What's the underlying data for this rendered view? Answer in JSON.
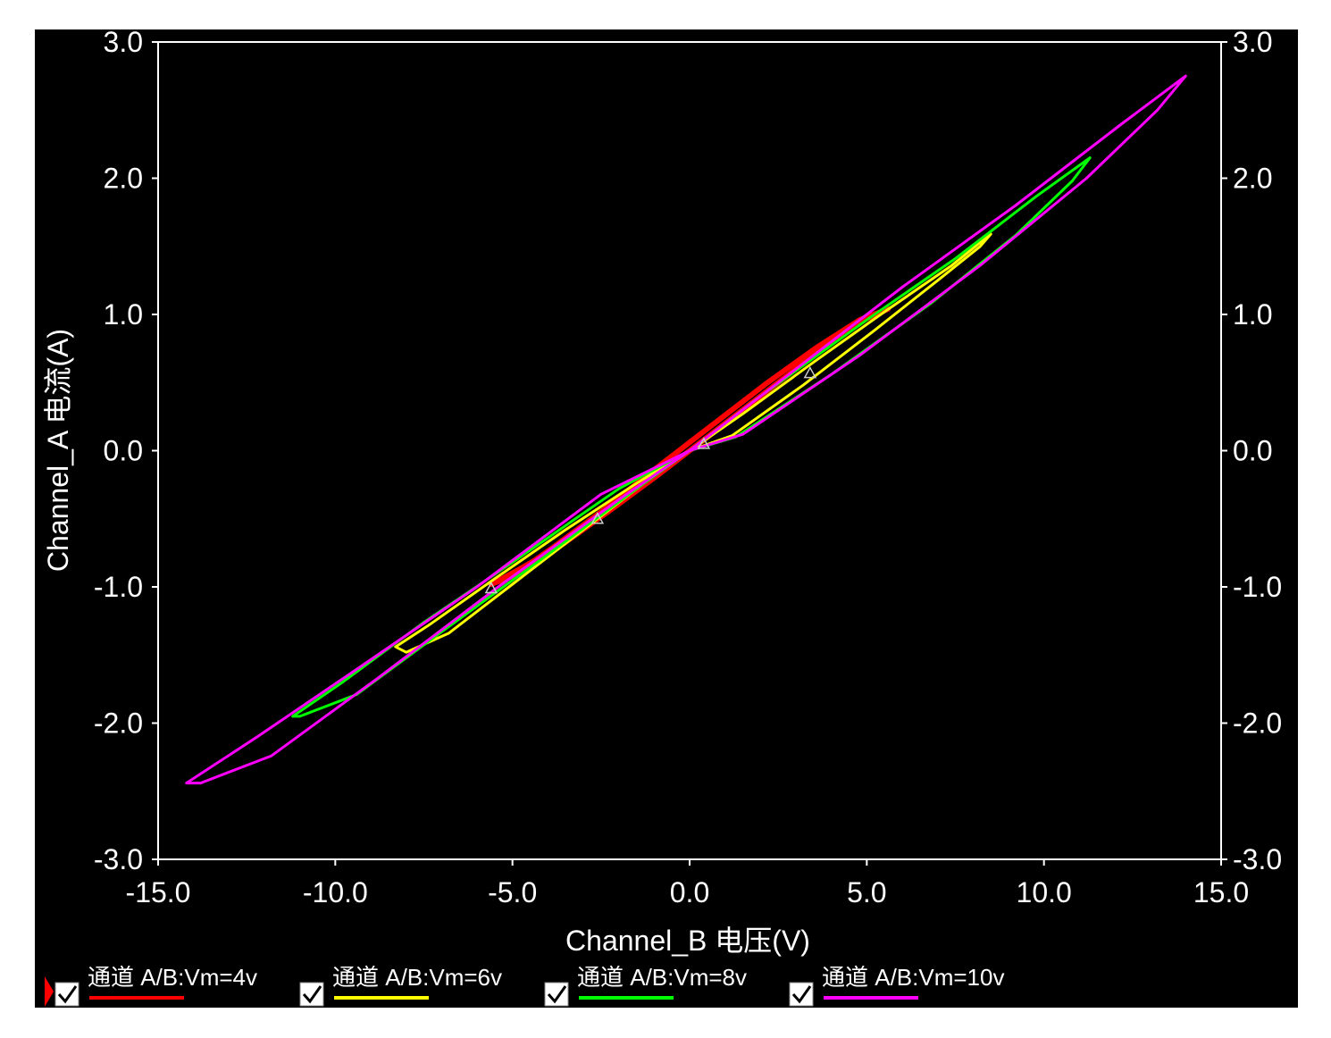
{
  "chart_data": {
    "type": "line",
    "title": "",
    "xlabel": "Channel_B 电压(V)",
    "ylabel": "Channel_A 电流(A)",
    "xlim": [
      -15,
      15
    ],
    "ylim": [
      -3,
      3
    ],
    "x_ticks": [
      "-15.0",
      "-10.0",
      "-5.0",
      "0.0",
      "5.0",
      "10.0",
      "15.0"
    ],
    "y_ticks": [
      "3.0",
      "2.0",
      "1.0",
      "0.0",
      "-1.0",
      "-2.0",
      "-3.0"
    ],
    "grid": false,
    "legend_position": "bottom",
    "background": "#000000",
    "series": [
      {
        "name": "通道 A/B:Vm=4v",
        "color": "#ff0000",
        "checked": true,
        "x": [
          5.6,
          5.5,
          4.8,
          3.6,
          2.2,
          0.9,
          0.0,
          -1.0,
          -2.4,
          -3.8,
          -5.0,
          -5.6,
          -5.5,
          -4.8,
          -3.6,
          -2.2,
          -0.9,
          0.0,
          1.0,
          2.4,
          3.8,
          5.0,
          5.6
        ],
        "y": [
          1.04,
          1.03,
          0.96,
          0.76,
          0.5,
          0.24,
          0.06,
          -0.14,
          -0.43,
          -0.7,
          -0.92,
          -0.98,
          -0.97,
          -0.87,
          -0.69,
          -0.43,
          -0.18,
          0.0,
          0.2,
          0.48,
          0.76,
          0.97,
          1.04
        ]
      },
      {
        "name": "通道 A/B:Vm=6v",
        "color": "#ffff00",
        "checked": true,
        "x": [
          8.5,
          8.2,
          7.0,
          5.2,
          3.2,
          1.2,
          0.0,
          -1.5,
          -3.5,
          -5.5,
          -7.3,
          -8.3,
          -8.0,
          -6.8,
          -5.0,
          -3.0,
          -1.0,
          0.0,
          1.5,
          3.5,
          5.5,
          7.4,
          8.5
        ],
        "y": [
          1.59,
          1.5,
          1.25,
          0.88,
          0.48,
          0.11,
          0.0,
          -0.24,
          -0.58,
          -0.94,
          -1.27,
          -1.44,
          -1.48,
          -1.34,
          -0.98,
          -0.58,
          -0.18,
          0.0,
          0.27,
          0.65,
          1.02,
          1.36,
          1.59
        ]
      },
      {
        "name": "通道 A/B:Vm=8v",
        "color": "#00ff00",
        "checked": true,
        "x": [
          11.3,
          10.8,
          9.2,
          6.8,
          4.0,
          1.3,
          0.0,
          -2.0,
          -5.0,
          -7.5,
          -9.8,
          -11.2,
          -11.0,
          -9.4,
          -7.0,
          -4.2,
          -1.5,
          0.0,
          2.0,
          5.0,
          7.5,
          9.8,
          11.3
        ],
        "y": [
          2.15,
          1.98,
          1.58,
          1.08,
          0.56,
          0.1,
          0.0,
          -0.28,
          -0.82,
          -1.26,
          -1.7,
          -1.95,
          -1.95,
          -1.79,
          -1.33,
          -0.8,
          -0.28,
          0.0,
          0.4,
          0.96,
          1.41,
          1.87,
          2.15
        ]
      },
      {
        "name": "通道 A/B:Vm=10v",
        "color": "#ff00ff",
        "checked": true,
        "x": [
          14.0,
          13.2,
          11.2,
          8.2,
          4.8,
          1.5,
          0.0,
          -2.5,
          -6.0,
          -9.2,
          -12.2,
          -14.2,
          -13.8,
          -11.8,
          -8.8,
          -5.4,
          -2.0,
          0.0,
          2.5,
          6.0,
          9.2,
          12.2,
          14.0
        ],
        "y": [
          2.75,
          2.5,
          2.0,
          1.36,
          0.7,
          0.12,
          0.0,
          -0.32,
          -1.0,
          -1.57,
          -2.1,
          -2.44,
          -2.44,
          -2.24,
          -1.67,
          -1.0,
          -0.36,
          0.0,
          0.5,
          1.2,
          1.8,
          2.4,
          2.75
        ]
      }
    ],
    "markers": [
      {
        "x": 3.4,
        "y": 0.57
      },
      {
        "x": 0.4,
        "y": 0.05
      },
      {
        "x": -2.6,
        "y": -0.5
      },
      {
        "x": -5.6,
        "y": -1.01
      }
    ]
  }
}
